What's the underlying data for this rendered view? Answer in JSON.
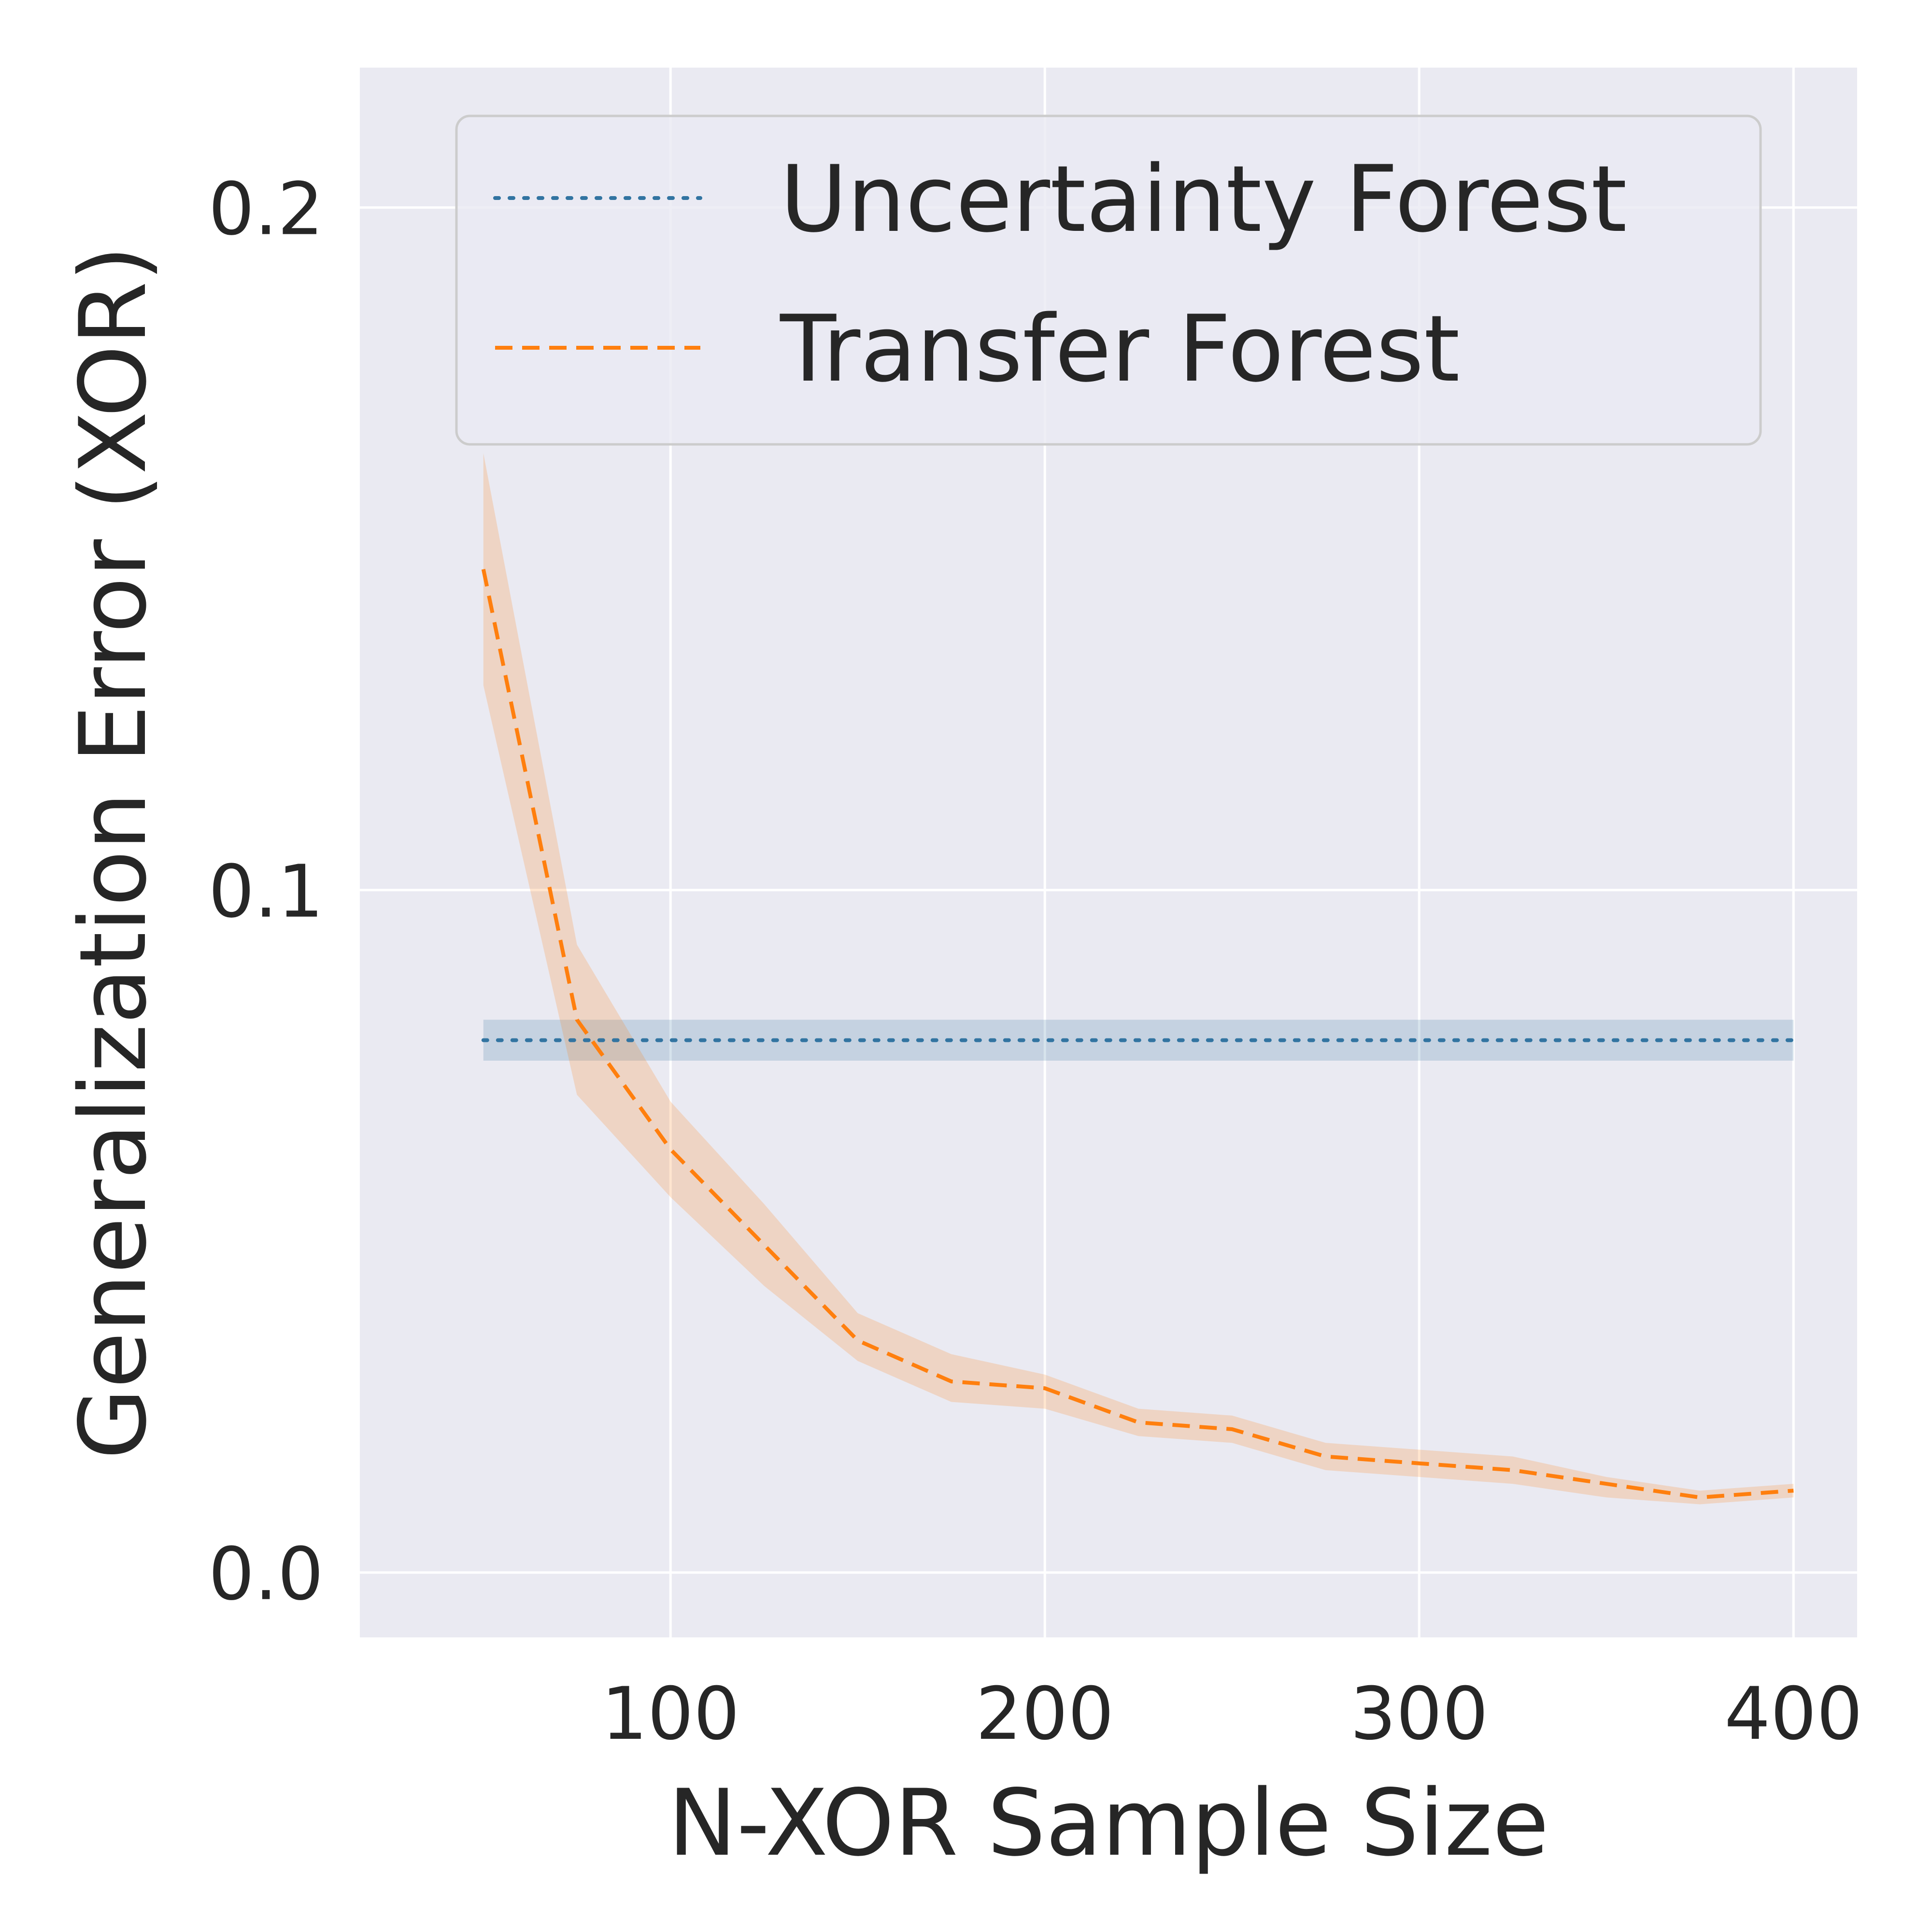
{
  "chart_data": {
    "type": "line",
    "title": "",
    "xlabel": "N-XOR Sample Size",
    "ylabel": "Generalization Error (XOR)",
    "xlim": [
      17,
      417
    ],
    "ylim": [
      -0.0095,
      0.2205
    ],
    "xticks": [
      100,
      200,
      300,
      400
    ],
    "xtick_labels": [
      "100",
      "200",
      "300",
      "400"
    ],
    "yticks": [
      0.0,
      0.1,
      0.2
    ],
    "ytick_labels": [
      "0.0",
      "0.1",
      "0.2"
    ],
    "grid": true,
    "legend_position": "top-right",
    "series": [
      {
        "name": "Uncertainty Forest",
        "style": "dotted",
        "color": "#3274a1",
        "x": [
          50,
          400
        ],
        "y": [
          0.078,
          0.078
        ],
        "band_low": [
          0.075,
          0.075
        ],
        "band_high": [
          0.081,
          0.081
        ]
      },
      {
        "name": "Transfer Forest",
        "style": "dashed",
        "color": "#ff7f0e",
        "x": [
          50,
          75,
          100,
          125,
          150,
          175,
          200,
          225,
          250,
          275,
          300,
          325,
          350,
          375,
          400
        ],
        "y": [
          0.147,
          0.081,
          0.062,
          0.048,
          0.034,
          0.028,
          0.027,
          0.022,
          0.021,
          0.017,
          0.016,
          0.015,
          0.013,
          0.011,
          0.012
        ],
        "band_low": [
          0.13,
          0.07,
          0.055,
          0.042,
          0.031,
          0.025,
          0.024,
          0.02,
          0.019,
          0.015,
          0.014,
          0.013,
          0.011,
          0.01,
          0.011
        ],
        "band_high": [
          0.164,
          0.092,
          0.069,
          0.054,
          0.038,
          0.032,
          0.029,
          0.024,
          0.023,
          0.019,
          0.018,
          0.017,
          0.014,
          0.012,
          0.013
        ]
      }
    ]
  }
}
